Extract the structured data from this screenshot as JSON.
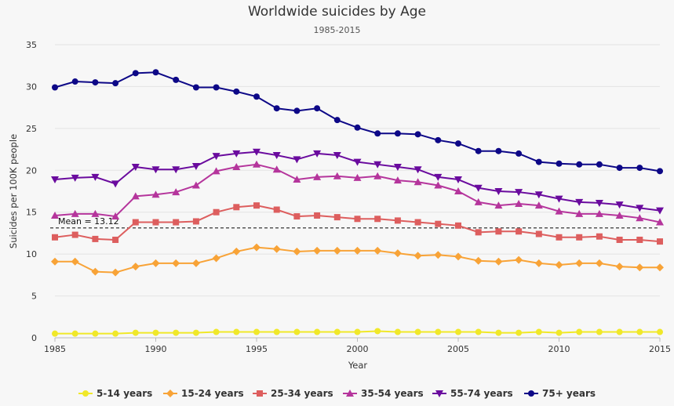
{
  "chart_data": {
    "type": "line",
    "title": "Worldwide suicides by Age",
    "subtitle": "1985-2015",
    "xlabel": "Year",
    "ylabel": "Suicides per 100K people",
    "xlim": [
      1985,
      2015
    ],
    "ylim": [
      0,
      35
    ],
    "x_ticks": [
      1985,
      1990,
      1995,
      2000,
      2005,
      2010,
      2015
    ],
    "y_ticks": [
      0,
      5,
      10,
      15,
      20,
      25,
      30,
      35
    ],
    "grid": true,
    "legend_position": "bottom",
    "mean_line": {
      "value": 13.12,
      "label": "Mean = 13.12"
    },
    "x": [
      1985,
      1986,
      1987,
      1988,
      1989,
      1990,
      1991,
      1992,
      1993,
      1994,
      1995,
      1996,
      1997,
      1998,
      1999,
      2000,
      2001,
      2002,
      2003,
      2004,
      2005,
      2006,
      2007,
      2008,
      2009,
      2010,
      2011,
      2012,
      2013,
      2014,
      2015
    ],
    "series": [
      {
        "name": "5-14 years",
        "color": "#f0e829",
        "marker": "circle",
        "values": [
          0.5,
          0.5,
          0.5,
          0.5,
          0.6,
          0.6,
          0.6,
          0.6,
          0.7,
          0.7,
          0.7,
          0.7,
          0.7,
          0.7,
          0.7,
          0.7,
          0.8,
          0.7,
          0.7,
          0.7,
          0.7,
          0.7,
          0.6,
          0.6,
          0.7,
          0.6,
          0.7,
          0.7,
          0.7,
          0.7,
          0.7
        ]
      },
      {
        "name": "15-24 years",
        "color": "#f8a337",
        "marker": "diamond",
        "values": [
          9.1,
          9.1,
          7.9,
          7.8,
          8.5,
          8.9,
          8.9,
          8.9,
          9.5,
          10.3,
          10.8,
          10.6,
          10.3,
          10.4,
          10.4,
          10.4,
          10.4,
          10.1,
          9.8,
          9.9,
          9.7,
          9.2,
          9.1,
          9.3,
          8.9,
          8.7,
          8.9,
          8.9,
          8.5,
          8.4,
          8.4
        ]
      },
      {
        "name": "25-34 years",
        "color": "#dd5e5e",
        "marker": "square",
        "values": [
          12.0,
          12.3,
          11.8,
          11.7,
          13.8,
          13.8,
          13.8,
          13.9,
          15.0,
          15.6,
          15.8,
          15.3,
          14.5,
          14.6,
          14.4,
          14.2,
          14.2,
          14.0,
          13.8,
          13.6,
          13.4,
          12.6,
          12.7,
          12.7,
          12.4,
          12.0,
          12.0,
          12.1,
          11.7,
          11.7,
          11.5
        ]
      },
      {
        "name": "35-54 years",
        "color": "#b5359c",
        "marker": "triangle-up",
        "values": [
          14.6,
          14.8,
          14.8,
          14.5,
          16.9,
          17.1,
          17.4,
          18.2,
          19.9,
          20.4,
          20.7,
          20.1,
          18.9,
          19.2,
          19.3,
          19.1,
          19.3,
          18.8,
          18.6,
          18.2,
          17.5,
          16.2,
          15.8,
          16.0,
          15.8,
          15.1,
          14.8,
          14.8,
          14.6,
          14.3,
          13.8
        ]
      },
      {
        "name": "55-74 years",
        "color": "#6a0b9e",
        "marker": "triangle-down",
        "values": [
          18.9,
          19.1,
          19.2,
          18.4,
          20.4,
          20.1,
          20.1,
          20.5,
          21.7,
          22.0,
          22.2,
          21.8,
          21.3,
          22.0,
          21.8,
          21.0,
          20.7,
          20.4,
          20.1,
          19.2,
          18.9,
          17.9,
          17.5,
          17.4,
          17.1,
          16.6,
          16.2,
          16.1,
          15.9,
          15.5,
          15.2
        ]
      },
      {
        "name": "75+ years",
        "color": "#0d0887",
        "marker": "circle",
        "values": [
          29.9,
          30.6,
          30.5,
          30.4,
          31.6,
          31.7,
          30.8,
          29.9,
          29.9,
          29.4,
          28.8,
          27.4,
          27.1,
          27.4,
          26.0,
          25.1,
          24.4,
          24.4,
          24.3,
          23.6,
          23.2,
          22.3,
          22.3,
          22.0,
          21.0,
          20.8,
          20.7,
          20.7,
          20.3,
          20.3,
          19.9
        ]
      }
    ]
  }
}
